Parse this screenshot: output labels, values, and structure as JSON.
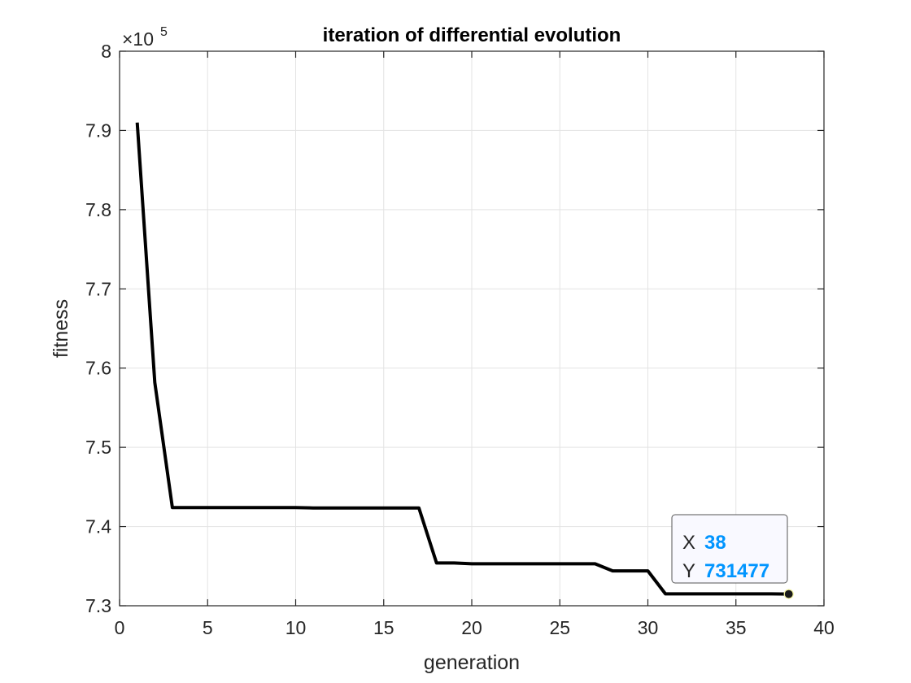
{
  "chart_data": {
    "type": "line",
    "title": "iteration of differential evolution",
    "xlabel": "generation",
    "ylabel": "fitness",
    "y_exponent_label": "×10",
    "y_exponent_power": "5",
    "xlim": [
      0,
      40
    ],
    "ylim": [
      730000,
      800000
    ],
    "x_ticks": [
      0,
      5,
      10,
      15,
      20,
      25,
      30,
      35,
      40
    ],
    "x_tick_labels": [
      "0",
      "5",
      "10",
      "15",
      "20",
      "25",
      "30",
      "35",
      "40"
    ],
    "y_ticks": [
      730000,
      740000,
      750000,
      760000,
      770000,
      780000,
      790000,
      800000
    ],
    "y_tick_labels": [
      "7.3",
      "7.4",
      "7.5",
      "7.6",
      "7.7",
      "7.8",
      "7.9",
      "8"
    ],
    "grid": true,
    "series": [
      {
        "color": "#000000",
        "x": [
          1,
          2,
          3,
          4,
          5,
          6,
          7,
          8,
          9,
          10,
          11,
          12,
          13,
          14,
          15,
          16,
          17,
          18,
          19,
          20,
          21,
          22,
          23,
          24,
          25,
          26,
          27,
          28,
          29,
          30,
          31,
          32,
          33,
          34,
          35,
          36,
          37,
          38
        ],
        "y": [
          791000,
          758200,
          742400,
          742400,
          742400,
          742400,
          742400,
          742400,
          742400,
          742400,
          742350,
          742350,
          742350,
          742350,
          742350,
          742350,
          742350,
          735400,
          735400,
          735300,
          735300,
          735300,
          735300,
          735300,
          735300,
          735300,
          735300,
          734400,
          734400,
          734400,
          731500,
          731500,
          731500,
          731500,
          731500,
          731500,
          731500,
          731477
        ]
      }
    ],
    "datatip": {
      "x_key": "X",
      "x_value": "38",
      "y_key": "Y",
      "y_value": "731477",
      "x": 38,
      "y": 731477
    }
  }
}
